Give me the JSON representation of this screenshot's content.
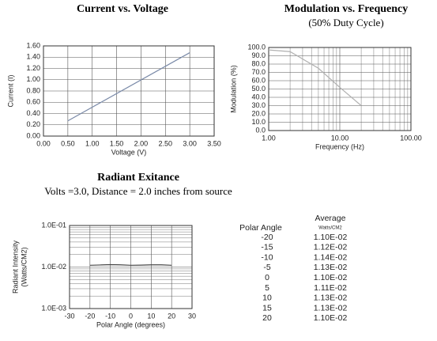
{
  "chart_data": [
    {
      "type": "line",
      "title": "Current vs. Voltage",
      "x_label": "Voltage (V)",
      "y_label": "Current (I)",
      "x": [
        0.5,
        3.0
      ],
      "series": [
        {
          "color": "#7a8aa8",
          "values": [
            0.27,
            1.48
          ]
        }
      ],
      "xlim": [
        0,
        3.5
      ],
      "xticks": [
        {
          "value": 0,
          "label": "0.00"
        },
        {
          "value": 0.5,
          "label": "0.50"
        },
        {
          "value": 1,
          "label": "1.00"
        },
        {
          "value": 1.5,
          "label": "1.50"
        },
        {
          "value": 2,
          "label": "2.00"
        },
        {
          "value": 2.5,
          "label": "2.50"
        },
        {
          "value": 3,
          "label": "3.00"
        },
        {
          "value": 3.5,
          "label": "3.50"
        }
      ],
      "ylim": [
        0,
        1.6
      ],
      "yticks": [
        {
          "value": 0,
          "label": "0.00"
        },
        {
          "value": 0.2,
          "label": "0.20"
        },
        {
          "value": 0.4,
          "label": "0.40"
        },
        {
          "value": 0.6,
          "label": "0.60"
        },
        {
          "value": 0.8,
          "label": "0.80"
        },
        {
          "value": 1,
          "label": "1.00"
        },
        {
          "value": 1.2,
          "label": "1.20"
        },
        {
          "value": 1.4,
          "label": "1.40"
        },
        {
          "value": 1.6,
          "label": "1.60"
        }
      ],
      "grid": true,
      "x_log": false,
      "y_log": false
    },
    {
      "type": "line",
      "title": "Modulation vs. Frequency",
      "subtitle": "(50% Duty Cycle)",
      "x_label": "Frequency (Hz)",
      "y_label": "Modulation (%)",
      "x": [
        1,
        2,
        5,
        10,
        20
      ],
      "series": [
        {
          "color": "#b0b0b0",
          "values": [
            97,
            95,
            75,
            52,
            30
          ]
        }
      ],
      "xlim": [
        1,
        100
      ],
      "xticks": [
        {
          "value": 1,
          "label": "1.00"
        },
        {
          "value": 10,
          "label": "10.00"
        },
        {
          "value": 100,
          "label": "100.00"
        }
      ],
      "ylim": [
        0,
        100
      ],
      "yticks": [
        {
          "value": 0,
          "label": "0.0"
        },
        {
          "value": 10,
          "label": "10.0"
        },
        {
          "value": 20,
          "label": "20.0"
        },
        {
          "value": 30,
          "label": "30.0"
        },
        {
          "value": 40,
          "label": "40.0"
        },
        {
          "value": 50,
          "label": "50.0"
        },
        {
          "value": 60,
          "label": "60.0"
        },
        {
          "value": 70,
          "label": "70.0"
        },
        {
          "value": 80,
          "label": "80.0"
        },
        {
          "value": 90,
          "label": "90.0"
        },
        {
          "value": 100,
          "label": "100.0"
        }
      ],
      "grid": true,
      "x_log": true,
      "y_log": false
    },
    {
      "type": "line",
      "title": "Radiant Exitance",
      "subtitle": "Volts =3.0, Distance = 2.0 inches from source",
      "x_label": "Polar Angle (degrees)",
      "y_label": [
        "Radiant Intensity",
        "(Watts/CM2)"
      ],
      "x": [
        -20,
        -15,
        -10,
        -5,
        0,
        5,
        10,
        15,
        20
      ],
      "series": [
        {
          "color": "#444444",
          "values": [
            0.011,
            0.0112,
            0.0114,
            0.0113,
            0.011,
            0.0111,
            0.0113,
            0.0113,
            0.011
          ],
          "value_labels": [
            "1.10E-02",
            "1.12E-02",
            "1.14E-02",
            "1.13E-02",
            "1.10E-02",
            "1.11E-02",
            "1.13E-02",
            "1.13E-02",
            "1.10E-02"
          ]
        }
      ],
      "xlim": [
        -30,
        30
      ],
      "xticks": [
        -30,
        -20,
        -10,
        0,
        10,
        20,
        30
      ],
      "ylim": [
        0.001,
        0.1
      ],
      "yticks": [
        {
          "value": 0.001,
          "label": "1.0E-03"
        },
        {
          "value": 0.01,
          "label": "1.0E-02"
        },
        {
          "value": 0.1,
          "label": "1.0E-01"
        }
      ],
      "grid": true,
      "x_log": false,
      "y_log": true
    }
  ],
  "table": {
    "columns": [
      "Polar Angle",
      "Average",
      "Watts/CM2"
    ]
  }
}
